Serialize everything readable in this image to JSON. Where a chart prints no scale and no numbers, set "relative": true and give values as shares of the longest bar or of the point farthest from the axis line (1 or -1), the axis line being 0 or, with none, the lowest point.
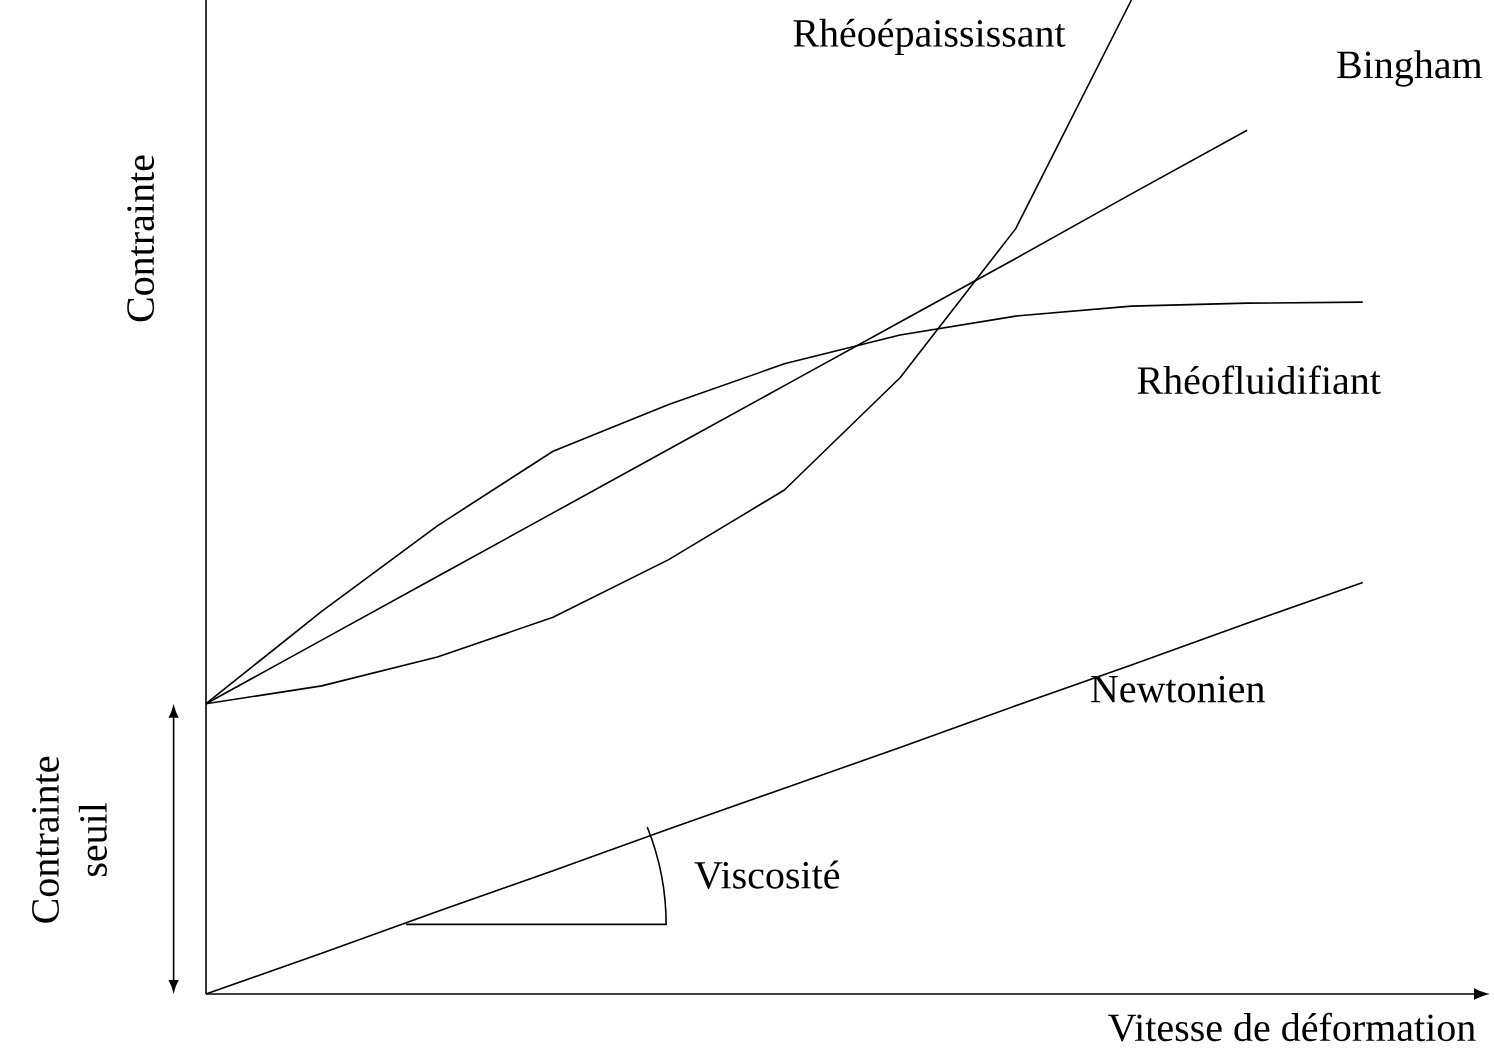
{
  "chart_data": {
    "type": "line",
    "relative": true,
    "xlabel": "Vitesse de déformation",
    "ylabel": "Contrainte",
    "categories": [
      null,
      null,
      null,
      null,
      null,
      null,
      null,
      null,
      null,
      null,
      null
    ],
    "tick_labels": false,
    "marker": "none",
    "line_style": "solid",
    "series": [
      {
        "name": "Rhéoépaississant",
        "color": "#000000",
        "values": [
          0.292,
          0.31,
          0.339,
          0.379,
          0.437,
          0.507,
          0.62,
          0.77,
          1.0,
          null,
          null
        ]
      },
      {
        "name": "Bingham",
        "color": "#000000",
        "values": [
          0.292,
          0.356,
          0.42,
          0.484,
          0.548,
          0.612,
          0.676,
          0.74,
          0.805,
          0.869,
          null
        ]
      },
      {
        "name": "Rhéofluidifiant",
        "color": "#000000",
        "values": [
          0.292,
          0.385,
          0.471,
          0.546,
          0.593,
          0.634,
          0.663,
          0.682,
          0.692,
          0.695,
          0.696
        ]
      },
      {
        "name": "Newtonien",
        "color": "#000000",
        "values": [
          0,
          0.041,
          0.083,
          0.124,
          0.166,
          0.207,
          0.248,
          0.29,
          0.331,
          0.373,
          0.414
        ]
      }
    ],
    "annotations": [
      "Contrainte seuil",
      "Viscosité"
    ]
  }
}
